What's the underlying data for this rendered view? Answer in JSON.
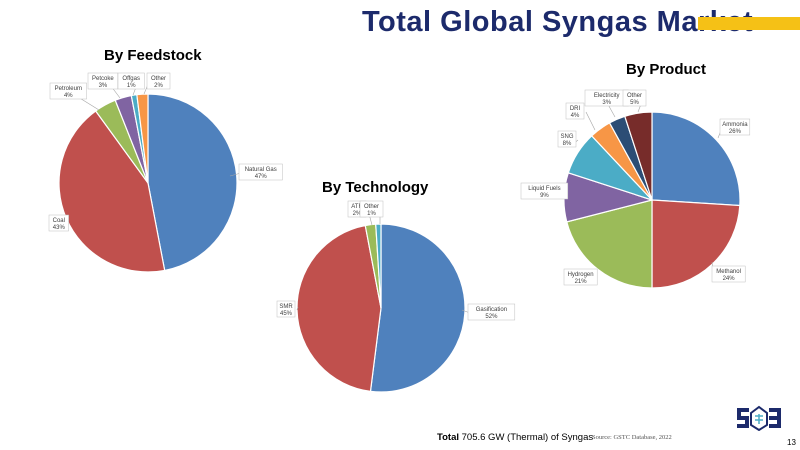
{
  "slide": {
    "title": "Total Global Syngas Market",
    "accent_color": "#f5c116",
    "title_color": "#1c2a6b",
    "footer_total_label": "Total",
    "footer_total_value": "705.6 GW (Thermal) of Syngas",
    "footer_source": "Source: GSTC Database, 2022",
    "page_number": "13",
    "logo_icon": "gstc-logo-icon"
  },
  "chart_data": [
    {
      "type": "pie",
      "title": "By Feedstock",
      "slices": [
        {
          "label": "Natural Gas",
          "pct_label": "47%",
          "value": 47,
          "color": "#4f81bd"
        },
        {
          "label": "Coal",
          "pct_label": "43%",
          "value": 43,
          "color": "#c0504d"
        },
        {
          "label": "Petroleum",
          "pct_label": "4%",
          "value": 4,
          "color": "#9bbb59"
        },
        {
          "label": "Petcoke",
          "pct_label": "3%",
          "value": 3,
          "color": "#8064a2"
        },
        {
          "label": "Offgas",
          "pct_label": "1%",
          "value": 1,
          "color": "#4bacc6"
        },
        {
          "label": "Other",
          "pct_label": "2%",
          "value": 2,
          "color": "#f79646"
        }
      ]
    },
    {
      "type": "pie",
      "title": "By Technology",
      "slices": [
        {
          "label": "Gasification",
          "pct_label": "52%",
          "value": 52,
          "color": "#4f81bd"
        },
        {
          "label": "SMR",
          "pct_label": "45%",
          "value": 45,
          "color": "#c0504d"
        },
        {
          "label": "ATR",
          "pct_label": "2%",
          "value": 2,
          "color": "#9bbb59"
        },
        {
          "label": "Other",
          "pct_label": "1%",
          "value": 1,
          "color": "#4bacc6"
        }
      ]
    },
    {
      "type": "pie",
      "title": "By Product",
      "slices": [
        {
          "label": "Ammonia",
          "pct_label": "26%",
          "value": 26,
          "color": "#4f81bd"
        },
        {
          "label": "Methanol",
          "pct_label": "24%",
          "value": 24,
          "color": "#c0504d"
        },
        {
          "label": "Hydrogen",
          "pct_label": "21%",
          "value": 21,
          "color": "#9bbb59"
        },
        {
          "label": "Liquid Fuels",
          "pct_label": "9%",
          "value": 9,
          "color": "#8064a2"
        },
        {
          "label": "SNG",
          "pct_label": "8%",
          "value": 8,
          "color": "#4bacc6"
        },
        {
          "label": "DRI",
          "pct_label": "4%",
          "value": 4,
          "color": "#f79646"
        },
        {
          "label": "Electricity",
          "pct_label": "3%",
          "value": 3,
          "color": "#2c4d75"
        },
        {
          "label": "Other",
          "pct_label": "5%",
          "value": 5,
          "color": "#772c2a"
        }
      ]
    }
  ]
}
